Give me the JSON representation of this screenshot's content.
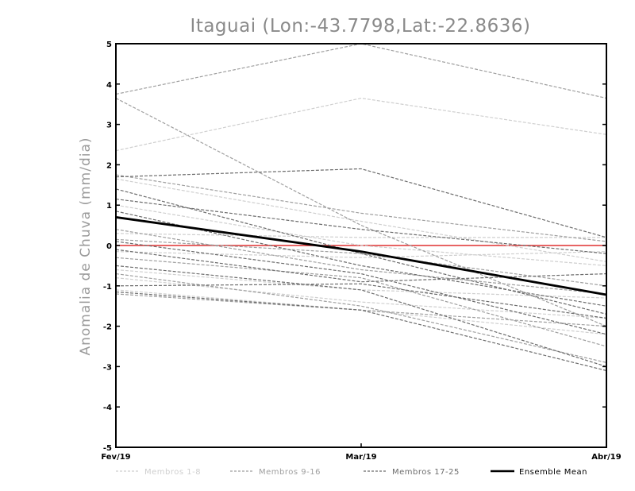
{
  "chart_data": {
    "type": "line",
    "title": "Itaguai (Lon:-43.7798,Lat:-22.8636)",
    "ylabel": "Anomalia de Chuva (mm/dia)",
    "xlabel": "",
    "categories": [
      "Fev/19",
      "Mar/19",
      "Abr/19"
    ],
    "yticks": [
      "5",
      "4",
      "3",
      "2",
      "1",
      "0",
      "-1",
      "-2",
      "-3",
      "-4",
      "-5"
    ],
    "ylim": [
      -5,
      5
    ],
    "zero_line_color": "#e03030",
    "legend": [
      {
        "label": "Membros 1-8",
        "color": "#cfcfcf",
        "style": "dashed"
      },
      {
        "label": "Membros 9-16",
        "color": "#9f9f9f",
        "style": "dashed"
      },
      {
        "label": "Membros 17-25",
        "color": "#6c6c6c",
        "style": "dashed"
      },
      {
        "label": "Ensemble Mean",
        "color": "#000000",
        "style": "solid"
      }
    ],
    "members_1_8": [
      [
        2.35,
        3.65,
        2.75
      ],
      [
        1.65,
        0.6,
        -0.4
      ],
      [
        0.3,
        0.2,
        0.2
      ],
      [
        -0.15,
        -0.3,
        -0.15
      ],
      [
        -0.6,
        -1.1,
        -1.3
      ],
      [
        -0.8,
        -1.4,
        -1.8
      ],
      [
        -1.1,
        -1.6,
        -2.2
      ],
      [
        1.0,
        0.0,
        -0.5
      ]
    ],
    "members_9_16": [
      [
        3.75,
        5.0,
        3.65
      ],
      [
        3.65,
        0.5,
        -2.0
      ],
      [
        1.75,
        0.8,
        0.1
      ],
      [
        0.4,
        -0.6,
        -1.2
      ],
      [
        -0.3,
        -0.8,
        -2.5
      ],
      [
        -0.7,
        -1.5,
        -2.9
      ],
      [
        -1.2,
        -1.6,
        -2.0
      ],
      [
        0.15,
        -0.2,
        -1.0
      ]
    ],
    "members_17_25": [
      [
        1.7,
        1.9,
        0.2
      ],
      [
        1.4,
        -0.2,
        -1.7
      ],
      [
        1.15,
        0.4,
        -0.2
      ],
      [
        0.85,
        -0.5,
        -1.5
      ],
      [
        0.1,
        -0.7,
        -2.2
      ],
      [
        -0.1,
        -0.9,
        -0.7
      ],
      [
        -0.5,
        -1.1,
        -3.0
      ],
      [
        -1.0,
        -0.95,
        -1.8
      ],
      [
        -1.15,
        -1.6,
        -3.1
      ]
    ],
    "ensemble_mean": [
      0.7,
      -0.15,
      -1.22
    ]
  }
}
